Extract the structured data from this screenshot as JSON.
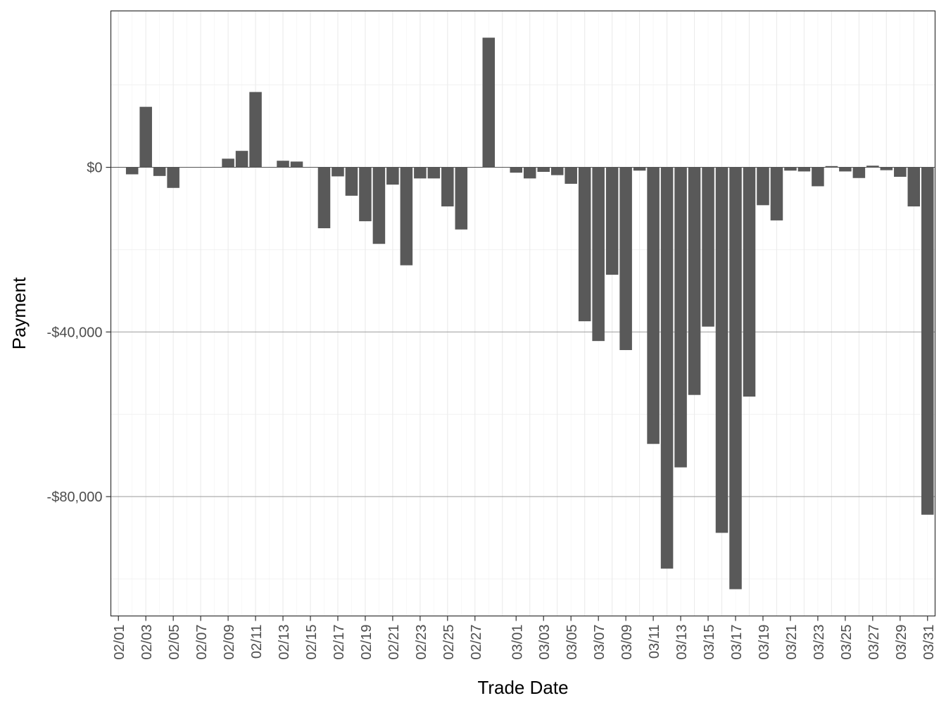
{
  "chart_data": {
    "type": "bar",
    "xlabel": "Trade Date",
    "ylabel": "Payment",
    "ylim": [
      -109000,
      38000
    ],
    "y_ticks": [
      0,
      -40000,
      -80000
    ],
    "y_tick_labels": [
      "$0",
      "-$40,000",
      "-$80,000"
    ],
    "x_range": [
      "02/01",
      "03/31"
    ],
    "x_tick_labels": [
      "02/01",
      "02/03",
      "02/05",
      "02/07",
      "02/09",
      "02/11",
      "02/13",
      "02/15",
      "02/17",
      "02/19",
      "02/21",
      "02/23",
      "02/25",
      "02/27",
      "03/01",
      "03/03",
      "03/05",
      "03/07",
      "03/09",
      "03/11",
      "03/13",
      "03/15",
      "03/17",
      "03/19",
      "03/21",
      "03/23",
      "03/25",
      "03/27",
      "03/29",
      "03/31"
    ],
    "grid": true,
    "bar_color": "#595959",
    "bars": [
      {
        "date": "02/02",
        "value": -1700
      },
      {
        "date": "02/03",
        "value": 14700
      },
      {
        "date": "02/04",
        "value": -2100
      },
      {
        "date": "02/05",
        "value": -5000
      },
      {
        "date": "02/09",
        "value": 2100
      },
      {
        "date": "02/10",
        "value": 4000
      },
      {
        "date": "02/11",
        "value": 18300
      },
      {
        "date": "02/13",
        "value": 1600
      },
      {
        "date": "02/14",
        "value": 1400
      },
      {
        "date": "02/16",
        "value": -14800
      },
      {
        "date": "02/17",
        "value": -2200
      },
      {
        "date": "02/18",
        "value": -6900
      },
      {
        "date": "02/19",
        "value": -13100
      },
      {
        "date": "02/20",
        "value": -18600
      },
      {
        "date": "02/21",
        "value": -4200
      },
      {
        "date": "02/22",
        "value": -23800
      },
      {
        "date": "02/23",
        "value": -2700
      },
      {
        "date": "02/24",
        "value": -2700
      },
      {
        "date": "02/25",
        "value": -9500
      },
      {
        "date": "02/26",
        "value": -15100
      },
      {
        "date": "02/28",
        "value": 31500
      },
      {
        "date": "03/01",
        "value": -1300
      },
      {
        "date": "03/02",
        "value": -2700
      },
      {
        "date": "03/03",
        "value": -1100
      },
      {
        "date": "03/04",
        "value": -1900
      },
      {
        "date": "03/05",
        "value": -4000
      },
      {
        "date": "03/06",
        "value": -37400
      },
      {
        "date": "03/07",
        "value": -42200
      },
      {
        "date": "03/08",
        "value": -26100
      },
      {
        "date": "03/09",
        "value": -44400
      },
      {
        "date": "03/10",
        "value": -800
      },
      {
        "date": "03/11",
        "value": -67200
      },
      {
        "date": "03/12",
        "value": -97500
      },
      {
        "date": "03/13",
        "value": -72900
      },
      {
        "date": "03/14",
        "value": -55300
      },
      {
        "date": "03/15",
        "value": -38700
      },
      {
        "date": "03/16",
        "value": -88800
      },
      {
        "date": "03/17",
        "value": -102500
      },
      {
        "date": "03/18",
        "value": -55700
      },
      {
        "date": "03/19",
        "value": -9200
      },
      {
        "date": "03/20",
        "value": -12900
      },
      {
        "date": "03/21",
        "value": -800
      },
      {
        "date": "03/22",
        "value": -1000
      },
      {
        "date": "03/23",
        "value": -4600
      },
      {
        "date": "03/24",
        "value": 300
      },
      {
        "date": "03/25",
        "value": -1000
      },
      {
        "date": "03/26",
        "value": -2600
      },
      {
        "date": "03/27",
        "value": 400
      },
      {
        "date": "03/28",
        "value": -700
      },
      {
        "date": "03/29",
        "value": -2300
      },
      {
        "date": "03/30",
        "value": -9500
      },
      {
        "date": "03/31",
        "value": -84400
      }
    ]
  }
}
